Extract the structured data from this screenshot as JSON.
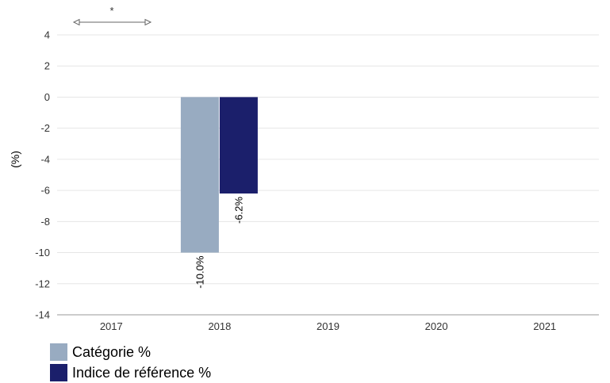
{
  "chart_data": {
    "type": "bar",
    "categories": [
      "2017",
      "2018",
      "2019",
      "2020",
      "2021"
    ],
    "series": [
      {
        "name": "Catégorie %",
        "color": "#98abc1",
        "values": [
          null,
          -10.0,
          null,
          null,
          null
        ],
        "labels": [
          "",
          "-10.0%",
          "",
          "",
          ""
        ]
      },
      {
        "name": "Indice de référence %",
        "color": "#1b1f6b",
        "values": [
          null,
          -6.2,
          null,
          null,
          null
        ],
        "labels": [
          "",
          "-6.2%",
          "",
          "",
          ""
        ]
      }
    ],
    "ylabel": "(%)",
    "ylim": [
      -14,
      4
    ],
    "yticks": [
      4,
      2,
      0,
      -2,
      -4,
      -6,
      -8,
      -10,
      -12,
      -14
    ],
    "grid": true,
    "legend_position": "bottom-left",
    "annotation": "*"
  }
}
